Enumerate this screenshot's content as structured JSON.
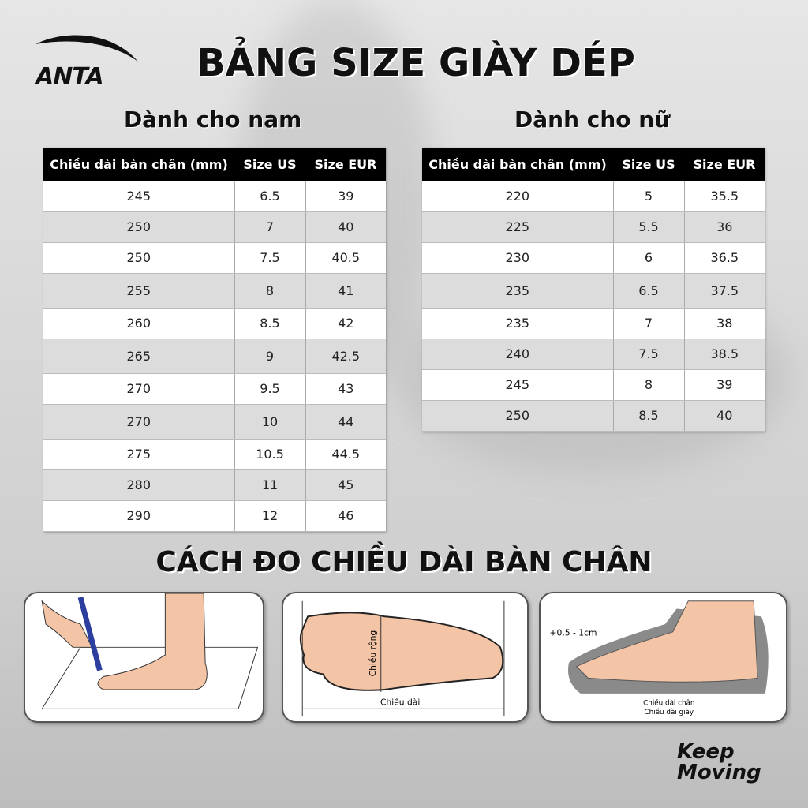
{
  "brand": "ANTA",
  "title": "BẢNG SIZE GIÀY DÉP",
  "men": {
    "heading": "Dành cho nam",
    "columns": [
      "Chiều dài bàn chân (mm)",
      "Size US",
      "Size EUR"
    ],
    "rows": [
      [
        "245",
        "6.5",
        "39"
      ],
      [
        "250",
        "7",
        "40"
      ],
      [
        "250",
        "7.5",
        "40.5"
      ],
      [
        "255",
        "8",
        "41"
      ],
      [
        "260",
        "8.5",
        "42"
      ],
      [
        "265",
        "9",
        "42.5"
      ],
      [
        "270",
        "9.5",
        "43"
      ],
      [
        "270",
        "10",
        "44"
      ],
      [
        "275",
        "10.5",
        "44.5"
      ],
      [
        "280",
        "11",
        "45"
      ],
      [
        "290",
        "12",
        "46"
      ]
    ]
  },
  "women": {
    "heading": "Dành cho nữ",
    "columns": [
      "Chiều dài bàn chân (mm)",
      "Size US",
      "Size EUR"
    ],
    "rows": [
      [
        "220",
        "5",
        "35.5"
      ],
      [
        "225",
        "5.5",
        "36"
      ],
      [
        "230",
        "6",
        "36.5"
      ],
      [
        "235",
        "6.5",
        "37.5"
      ],
      [
        "235",
        "7",
        "38"
      ],
      [
        "240",
        "7.5",
        "38.5"
      ],
      [
        "245",
        "8",
        "39"
      ],
      [
        "250",
        "8.5",
        "40"
      ]
    ]
  },
  "measure": {
    "heading": "CÁCH ĐO CHIỀU DÀI BÀN CHÂN",
    "width_label": "Chiều rộng",
    "length_label": "Chiều dài",
    "allowance": "+0.5 - 1cm",
    "foot_length": "Chiều dài chân",
    "shoe_length": "Chiều dài giày"
  },
  "slogan": {
    "line1": "Keep",
    "line2": "Moving"
  }
}
